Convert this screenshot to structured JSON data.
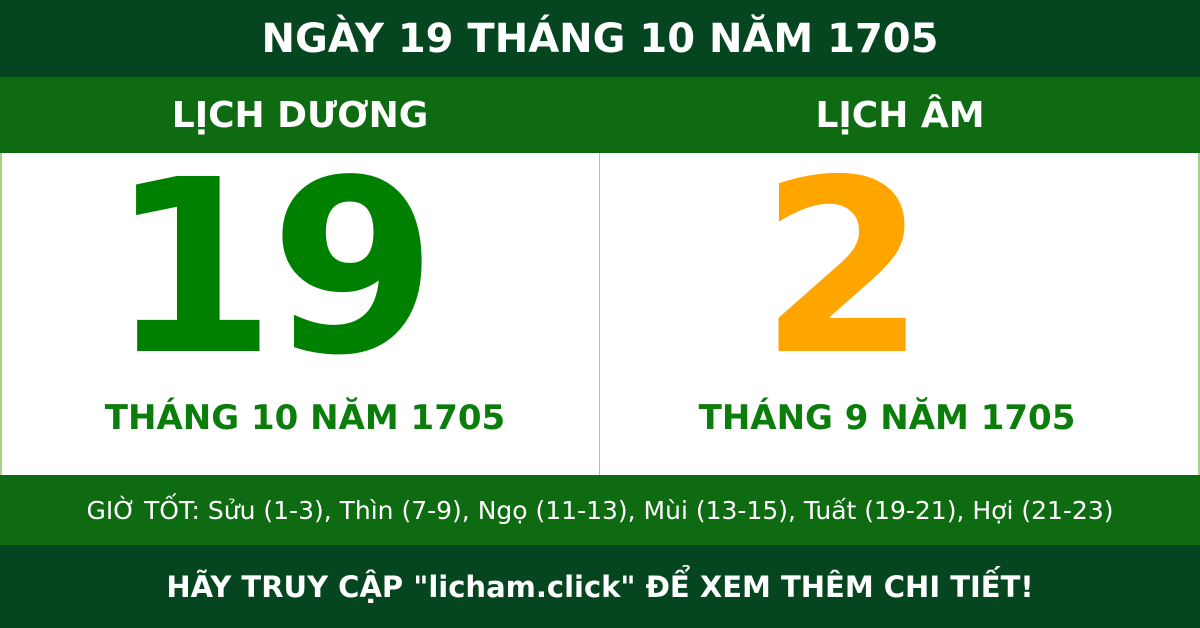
{
  "header": {
    "title": "NGÀY 19 THÁNG 10 NĂM 1705"
  },
  "solar": {
    "label": "LỊCH DƯƠNG",
    "day": "19",
    "month_year": "THÁNG 10 NĂM 1705"
  },
  "lunar": {
    "label": "LỊCH ÂM",
    "day": "2",
    "month_year": "THÁNG 9 NĂM 1705"
  },
  "good_hours": "GIỜ TỐT: Sửu (1-3), Thìn (7-9), Ngọ (11-13), Mùi (13-15), Tuất (19-21), Hợi (21-23)",
  "footer": {
    "cta": "HÃY TRUY CẬP \"licham.click\" ĐỂ XEM THÊM CHI TIẾT!"
  },
  "colors": {
    "dark_green": "#054621",
    "green": "#0f6b12",
    "solar_day": "#008000",
    "lunar_day": "#ffa500"
  }
}
